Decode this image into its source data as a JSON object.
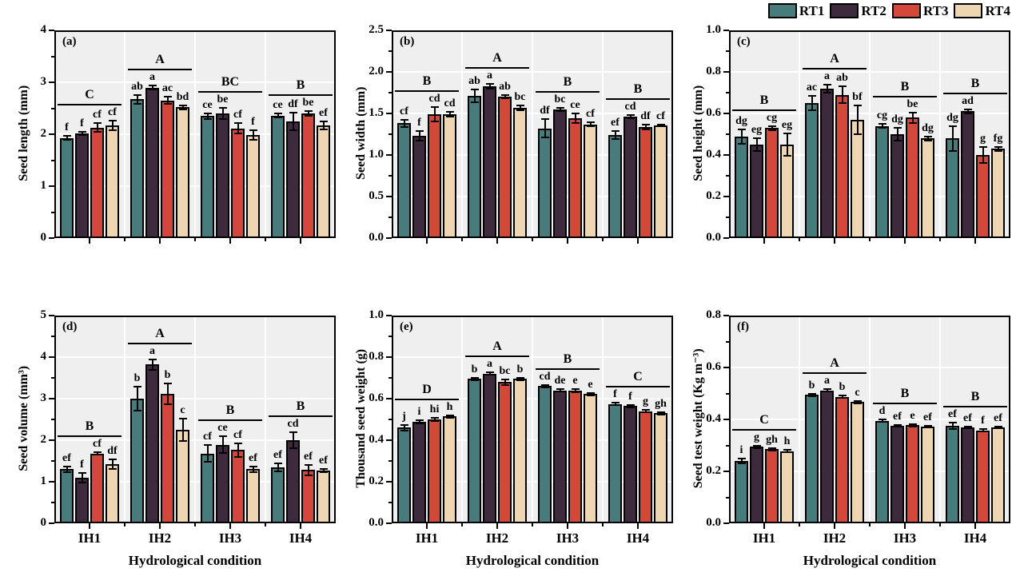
{
  "legend": {
    "items": [
      {
        "label": "RT1",
        "color": "#477b7c"
      },
      {
        "label": "RT2",
        "color": "#3d2a3c"
      },
      {
        "label": "RT3",
        "color": "#d3483b"
      },
      {
        "label": "RT4",
        "color": "#eed6b2"
      }
    ]
  },
  "colors": {
    "plot_bg": "#efefef",
    "axis": "#000000",
    "gridline": "#ffffff"
  },
  "chart_data": [
    {
      "type": "bar",
      "panel_tag": "(a)",
      "ylabel": "Seed length (mm)",
      "ylim": [
        0,
        4
      ],
      "yticks": [
        0,
        1,
        2,
        3,
        4
      ],
      "ytick_labels": [
        "0",
        "1",
        "2",
        "3",
        "4"
      ],
      "minor_step": 0.5,
      "categories": [
        "IH1",
        "IH2",
        "IH3",
        "IH4"
      ],
      "show_x_tick_labels": false,
      "xlabel": "",
      "series_names": [
        "RT1",
        "RT2",
        "RT3",
        "RT4"
      ],
      "groups": [
        {
          "category": "IH1",
          "group_letter": "C",
          "values": [
            1.93,
            2.01,
            2.13,
            2.17
          ],
          "errors": [
            0.04,
            0.03,
            0.08,
            0.09
          ],
          "letters": [
            "f",
            "f",
            "cf",
            "cf"
          ]
        },
        {
          "category": "IH2",
          "group_letter": "A",
          "values": [
            2.67,
            2.9,
            2.65,
            2.52
          ],
          "errors": [
            0.08,
            0.04,
            0.07,
            0.04
          ],
          "letters": [
            "ab",
            "a",
            "ac",
            "bd"
          ]
        },
        {
          "category": "IH3",
          "group_letter": "BC",
          "values": [
            2.35,
            2.4,
            2.11,
            1.99
          ],
          "errors": [
            0.05,
            0.11,
            0.1,
            0.09
          ],
          "letters": [
            "ce",
            "be",
            "cf",
            "f"
          ]
        },
        {
          "category": "IH4",
          "group_letter": "B",
          "values": [
            2.36,
            2.25,
            2.4,
            2.17
          ],
          "errors": [
            0.04,
            0.17,
            0.05,
            0.07
          ],
          "letters": [
            "ce",
            "df",
            "be",
            "ef"
          ]
        }
      ]
    },
    {
      "type": "bar",
      "panel_tag": "(b)",
      "ylabel": "Seed width (mm)",
      "ylim": [
        0,
        2.5
      ],
      "yticks": [
        0,
        0.5,
        1.0,
        1.5,
        2.0,
        2.5
      ],
      "ytick_labels": [
        "0.0",
        "0.5",
        "1.0",
        "1.5",
        "2.0",
        "2.5"
      ],
      "minor_step": 0.25,
      "categories": [
        "IH1",
        "IH2",
        "IH3",
        "IH4"
      ],
      "show_x_tick_labels": false,
      "xlabel": "",
      "series_names": [
        "RT1",
        "RT2",
        "RT3",
        "RT4"
      ],
      "groups": [
        {
          "category": "IH1",
          "group_letter": "B",
          "values": [
            1.38,
            1.23,
            1.49,
            1.49
          ],
          "errors": [
            0.04,
            0.06,
            0.09,
            0.03
          ],
          "letters": [
            "cf",
            "f",
            "cd",
            "cd"
          ]
        },
        {
          "category": "IH2",
          "group_letter": "A",
          "values": [
            1.71,
            1.83,
            1.7,
            1.57
          ],
          "errors": [
            0.08,
            0.03,
            0.02,
            0.03
          ],
          "letters": [
            "ab",
            "a",
            "ab",
            "bc"
          ]
        },
        {
          "category": "IH3",
          "group_letter": "B",
          "values": [
            1.32,
            1.55,
            1.44,
            1.37
          ],
          "errors": [
            0.11,
            0.02,
            0.06,
            0.02
          ],
          "letters": [
            "df",
            "bc",
            "ce",
            "cf"
          ]
        },
        {
          "category": "IH4",
          "group_letter": "B",
          "values": [
            1.24,
            1.46,
            1.34,
            1.36
          ],
          "errors": [
            0.05,
            0.02,
            0.03,
            0.01
          ],
          "letters": [
            "ef",
            "cd",
            "df",
            "cf"
          ]
        }
      ]
    },
    {
      "type": "bar",
      "panel_tag": "(c)",
      "ylabel": "Seed height (mm)",
      "ylim": [
        0,
        1.0
      ],
      "yticks": [
        0,
        0.2,
        0.4,
        0.6,
        0.8,
        1.0
      ],
      "ytick_labels": [
        "0.0",
        "0.2",
        "0.4",
        "0.6",
        "0.8",
        "1.0"
      ],
      "minor_step": 0.1,
      "categories": [
        "IH1",
        "IH2",
        "IH3",
        "IH4"
      ],
      "show_x_tick_labels": false,
      "xlabel": "",
      "series_names": [
        "RT1",
        "RT2",
        "RT3",
        "RT4"
      ],
      "groups": [
        {
          "category": "IH1",
          "group_letter": "B",
          "values": [
            0.49,
            0.45,
            0.53,
            0.45
          ],
          "errors": [
            0.035,
            0.03,
            0.01,
            0.055
          ],
          "letters": [
            "dg",
            "eg",
            "cg",
            "eg"
          ]
        },
        {
          "category": "IH2",
          "group_letter": "A",
          "values": [
            0.65,
            0.72,
            0.69,
            0.57
          ],
          "errors": [
            0.035,
            0.02,
            0.04,
            0.07
          ],
          "letters": [
            "ac",
            "a",
            "ab",
            "bf"
          ]
        },
        {
          "category": "IH3",
          "group_letter": "B",
          "values": [
            0.54,
            0.5,
            0.58,
            0.48
          ],
          "errors": [
            0.01,
            0.03,
            0.025,
            0.01
          ],
          "letters": [
            "cg",
            "dg",
            "be",
            "dg"
          ]
        },
        {
          "category": "IH4",
          "group_letter": "B",
          "values": [
            0.48,
            0.61,
            0.4,
            0.43
          ],
          "errors": [
            0.06,
            0.01,
            0.04,
            0.01
          ],
          "letters": [
            "dg",
            "ad",
            "g",
            "fg"
          ]
        }
      ]
    },
    {
      "type": "bar",
      "panel_tag": "(d)",
      "ylabel": "Seed volume (mm³)",
      "ylim": [
        0,
        5
      ],
      "yticks": [
        0,
        1,
        2,
        3,
        4,
        5
      ],
      "ytick_labels": [
        "0",
        "1",
        "2",
        "3",
        "4",
        "5"
      ],
      "minor_step": 0.5,
      "categories": [
        "IH1",
        "IH2",
        "IH3",
        "IH4"
      ],
      "show_x_tick_labels": true,
      "xlabel": "Hydrological condition",
      "series_names": [
        "RT1",
        "RT2",
        "RT3",
        "RT4"
      ],
      "groups": [
        {
          "category": "IH1",
          "group_letter": "B",
          "values": [
            1.3,
            1.1,
            1.68,
            1.42
          ],
          "errors": [
            0.07,
            0.12,
            0.03,
            0.12
          ],
          "letters": [
            "ef",
            "f",
            "cf",
            "df"
          ]
        },
        {
          "category": "IH2",
          "group_letter": "A",
          "values": [
            3.0,
            3.82,
            3.12,
            2.25
          ],
          "errors": [
            0.28,
            0.13,
            0.25,
            0.27
          ],
          "letters": [
            "b",
            "a",
            "b",
            "c"
          ]
        },
        {
          "category": "IH3",
          "group_letter": "B",
          "values": [
            1.68,
            1.89,
            1.76,
            1.3
          ],
          "errors": [
            0.2,
            0.2,
            0.17,
            0.07
          ],
          "letters": [
            "cf",
            "ce",
            "cf",
            "ef"
          ]
        },
        {
          "category": "IH4",
          "group_letter": "B",
          "values": [
            1.35,
            2.0,
            1.28,
            1.27
          ],
          "errors": [
            0.1,
            0.2,
            0.12,
            0.03
          ],
          "letters": [
            "ef",
            "cd",
            "ef",
            "ef"
          ]
        }
      ]
    },
    {
      "type": "bar",
      "panel_tag": "(e)",
      "ylabel": "Thousand seed weight (g)",
      "ylim": [
        0,
        1.0
      ],
      "yticks": [
        0,
        0.2,
        0.4,
        0.6,
        0.8,
        1.0
      ],
      "ytick_labels": [
        "0.0",
        "0.2",
        "0.4",
        "0.6",
        "0.8",
        "1.0"
      ],
      "minor_step": 0.1,
      "categories": [
        "IH1",
        "IH2",
        "IH3",
        "IH4"
      ],
      "show_x_tick_labels": true,
      "xlabel": "Hydrological condition",
      "series_names": [
        "RT1",
        "RT2",
        "RT3",
        "RT4"
      ],
      "groups": [
        {
          "category": "IH1",
          "group_letter": "D",
          "values": [
            0.46,
            0.49,
            0.5,
            0.515
          ],
          "errors": [
            0.012,
            0.008,
            0.008,
            0.006
          ],
          "letters": [
            "j",
            "i",
            "hi",
            "h"
          ]
        },
        {
          "category": "IH2",
          "group_letter": "A",
          "values": [
            0.695,
            0.72,
            0.68,
            0.695
          ],
          "errors": [
            0.006,
            0.006,
            0.014,
            0.005
          ],
          "letters": [
            "b",
            "a",
            "bc",
            "b"
          ]
        },
        {
          "category": "IH3",
          "group_letter": "B",
          "values": [
            0.66,
            0.64,
            0.638,
            0.622
          ],
          "errors": [
            0.006,
            0.006,
            0.008,
            0.005
          ],
          "letters": [
            "cd",
            "de",
            "e",
            "e"
          ]
        },
        {
          "category": "IH4",
          "group_letter": "C",
          "values": [
            0.575,
            0.565,
            0.54,
            0.53
          ],
          "errors": [
            0.006,
            0.006,
            0.005,
            0.005
          ],
          "letters": [
            "f",
            "f",
            "g",
            "gh"
          ]
        }
      ]
    },
    {
      "type": "bar",
      "panel_tag": "(f)",
      "ylabel": "Seed test weight (Kg m⁻³)",
      "ylim": [
        0,
        0.8
      ],
      "yticks": [
        0,
        0.2,
        0.4,
        0.6,
        0.8
      ],
      "ytick_labels": [
        "0.0",
        "0.2",
        "0.4",
        "0.6",
        "0.8"
      ],
      "minor_step": 0.1,
      "categories": [
        "IH1",
        "IH2",
        "IH3",
        "IH4"
      ],
      "show_x_tick_labels": true,
      "xlabel": "Hydrological condition",
      "series_names": [
        "RT1",
        "RT2",
        "RT3",
        "RT4"
      ],
      "groups": [
        {
          "category": "IH1",
          "group_letter": "C",
          "values": [
            0.24,
            0.295,
            0.285,
            0.278
          ],
          "errors": [
            0.01,
            0.005,
            0.004,
            0.004
          ],
          "letters": [
            "i",
            "g",
            "gh",
            "h"
          ]
        },
        {
          "category": "IH2",
          "group_letter": "A",
          "values": [
            0.495,
            0.512,
            0.487,
            0.467
          ],
          "errors": [
            0.005,
            0.004,
            0.004,
            0.004
          ],
          "letters": [
            "b",
            "a",
            "b",
            "c"
          ]
        },
        {
          "category": "IH3",
          "group_letter": "B",
          "values": [
            0.395,
            0.375,
            0.378,
            0.372
          ],
          "errors": [
            0.004,
            0.004,
            0.005,
            0.003
          ],
          "letters": [
            "d",
            "ef",
            "e",
            "ef"
          ]
        },
        {
          "category": "IH4",
          "group_letter": "B",
          "values": [
            0.375,
            0.37,
            0.358,
            0.37
          ],
          "errors": [
            0.012,
            0.003,
            0.005,
            0.003
          ],
          "letters": [
            "ef",
            "ef",
            "f",
            "ef"
          ]
        }
      ]
    }
  ]
}
